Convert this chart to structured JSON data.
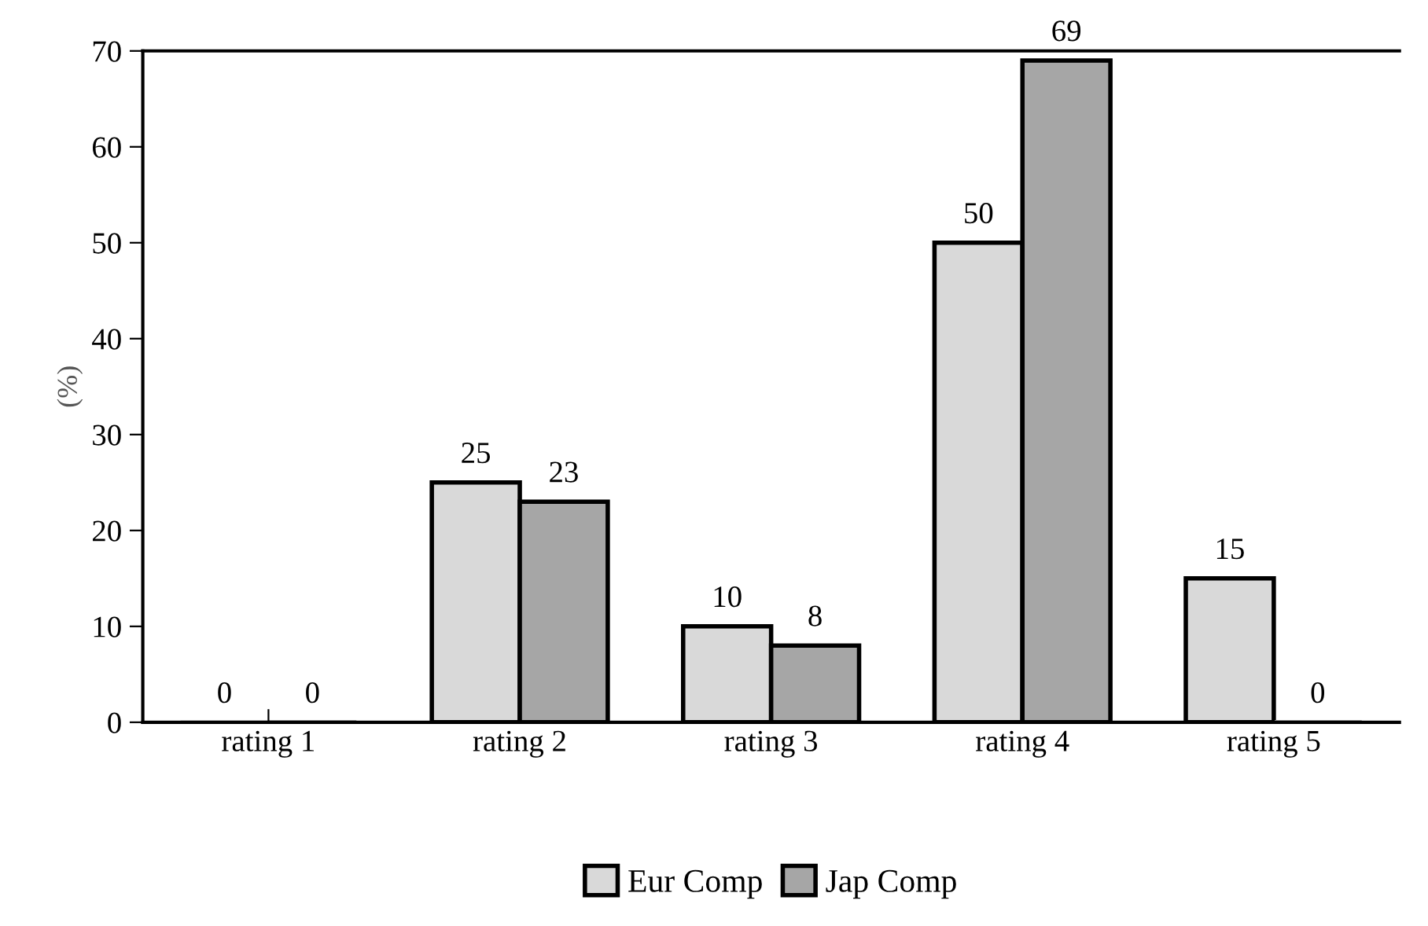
{
  "chart_data": {
    "type": "bar",
    "ylabel": "(%)",
    "categories": [
      "rating 1",
      "rating 2",
      "rating 3",
      "rating 4",
      "rating 5"
    ],
    "series": [
      {
        "name": "Eur Comp",
        "color": "#d9d9d9",
        "values": [
          0,
          25,
          10,
          50,
          15
        ]
      },
      {
        "name": "Jap Comp",
        "color": "#a6a6a6",
        "values": [
          0,
          23,
          8,
          69,
          0
        ]
      }
    ],
    "ylim": [
      0,
      70
    ],
    "yticks": [
      0,
      10,
      20,
      30,
      40,
      50,
      60,
      70
    ],
    "data_labels": true,
    "legend": "bottom",
    "grid": false
  }
}
